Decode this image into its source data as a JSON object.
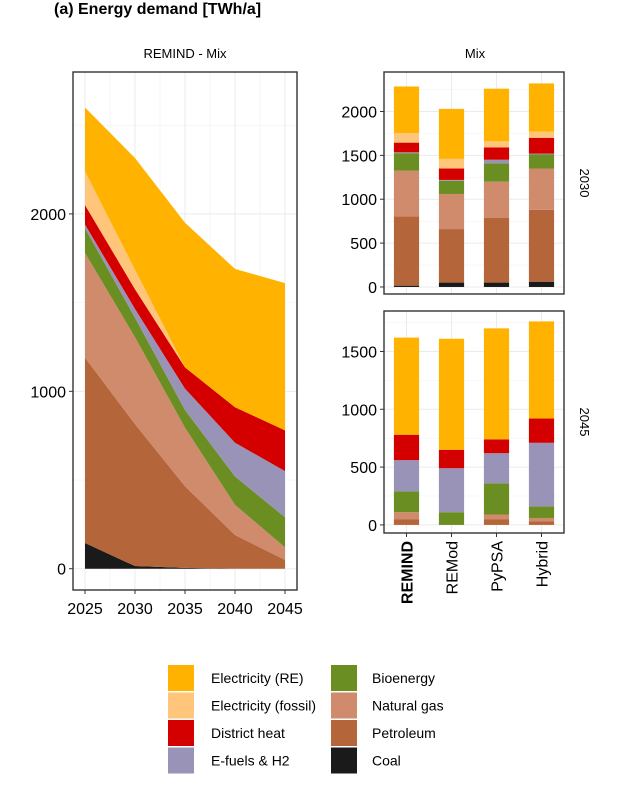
{
  "figure": {
    "title": "(a) Energy demand [TWh/a]"
  },
  "colors": {
    "Electricity (RE)": "#FFB300",
    "Electricity (fossil)": "#FFC57A",
    "District heat": "#D40000",
    "E-fuels & H2": "#9A93B8",
    "Bioenergy": "#6B8E23",
    "Natural gas": "#D08A6C",
    "Petroleum": "#B5653A",
    "Coal": "#1A1A1A"
  },
  "legend": {
    "items": [
      "Electricity (RE)",
      "Electricity (fossil)",
      "District heat",
      "E-fuels & H2",
      "Bioenergy",
      "Natural gas",
      "Petroleum",
      "Coal"
    ]
  },
  "chart_data": [
    {
      "type": "area",
      "panel_title": "REMIND - Mix",
      "x": [
        2025,
        2030,
        2035,
        2040,
        2045
      ],
      "x_ticks": [
        "2025",
        "2030",
        "2035",
        "2040",
        "2045"
      ],
      "y_ticks": [
        0,
        1000,
        2000
      ],
      "ylim": [
        -120,
        2800
      ],
      "grid": true,
      "stack_order": [
        "Coal",
        "Petroleum",
        "Natural gas",
        "Bioenergy",
        "E-fuels & H2",
        "District heat",
        "Electricity (fossil)",
        "Electricity (RE)"
      ],
      "series": [
        {
          "name": "Coal",
          "values": [
            145,
            15,
            5,
            0,
            0
          ]
        },
        {
          "name": "Petroleum",
          "values": [
            1045,
            800,
            460,
            190,
            50
          ]
        },
        {
          "name": "Natural gas",
          "values": [
            590,
            490,
            330,
            170,
            70
          ]
        },
        {
          "name": "Bioenergy",
          "values": [
            140,
            110,
            100,
            160,
            170
          ]
        },
        {
          "name": "E-fuels & H2",
          "values": [
            20,
            50,
            120,
            190,
            260
          ]
        },
        {
          "name": "District heat",
          "values": [
            110,
            110,
            120,
            200,
            230
          ]
        },
        {
          "name": "Electricity (fossil)",
          "values": [
            190,
            110,
            0,
            0,
            0
          ]
        },
        {
          "name": "Electricity (RE)",
          "values": [
            360,
            630,
            815,
            780,
            830
          ]
        }
      ]
    },
    {
      "type": "bar",
      "panel_title": "Mix",
      "facet": "2030",
      "categories": [
        "REMIND",
        "REMod",
        "PyPSA",
        "Hybrid"
      ],
      "y_ticks": [
        0,
        500,
        1000,
        1500,
        2000
      ],
      "ylim": [
        -80,
        2450
      ],
      "stack_order": [
        "Coal",
        "Petroleum",
        "Natural gas",
        "Bioenergy",
        "E-fuels & H2",
        "District heat",
        "Electricity (fossil)",
        "Electricity (RE)"
      ],
      "series": [
        {
          "name": "Coal",
          "values": [
            15,
            50,
            50,
            60
          ]
        },
        {
          "name": "Petroleum",
          "values": [
            790,
            610,
            740,
            820
          ]
        },
        {
          "name": "Natural gas",
          "values": [
            520,
            400,
            410,
            470
          ]
        },
        {
          "name": "Bioenergy",
          "values": [
            200,
            150,
            210,
            160
          ]
        },
        {
          "name": "E-fuels & H2",
          "values": [
            10,
            10,
            40,
            10
          ]
        },
        {
          "name": "District heat",
          "values": [
            110,
            130,
            140,
            180
          ]
        },
        {
          "name": "Electricity (fossil)",
          "values": [
            110,
            110,
            70,
            70
          ]
        },
        {
          "name": "Electricity (RE)",
          "values": [
            530,
            570,
            600,
            550
          ]
        }
      ]
    },
    {
      "type": "bar",
      "facet": "2045",
      "categories": [
        "REMIND",
        "REMod",
        "PyPSA",
        "Hybrid"
      ],
      "y_ticks": [
        0,
        500,
        1000,
        1500
      ],
      "ylim": [
        -70,
        1850
      ],
      "stack_order": [
        "Coal",
        "Petroleum",
        "Natural gas",
        "Bioenergy",
        "E-fuels & H2",
        "District heat",
        "Electricity (fossil)",
        "Electricity (RE)"
      ],
      "series": [
        {
          "name": "Coal",
          "values": [
            0,
            0,
            0,
            0
          ]
        },
        {
          "name": "Petroleum",
          "values": [
            50,
            0,
            50,
            30
          ]
        },
        {
          "name": "Natural gas",
          "values": [
            60,
            0,
            40,
            30
          ]
        },
        {
          "name": "Bioenergy",
          "values": [
            180,
            110,
            270,
            100
          ]
        },
        {
          "name": "E-fuels & H2",
          "values": [
            270,
            380,
            260,
            550
          ]
        },
        {
          "name": "District heat",
          "values": [
            220,
            160,
            120,
            210
          ]
        },
        {
          "name": "Electricity (fossil)",
          "values": [
            0,
            0,
            0,
            0
          ]
        },
        {
          "name": "Electricity (RE)",
          "values": [
            840,
            960,
            960,
            840
          ]
        }
      ]
    }
  ]
}
